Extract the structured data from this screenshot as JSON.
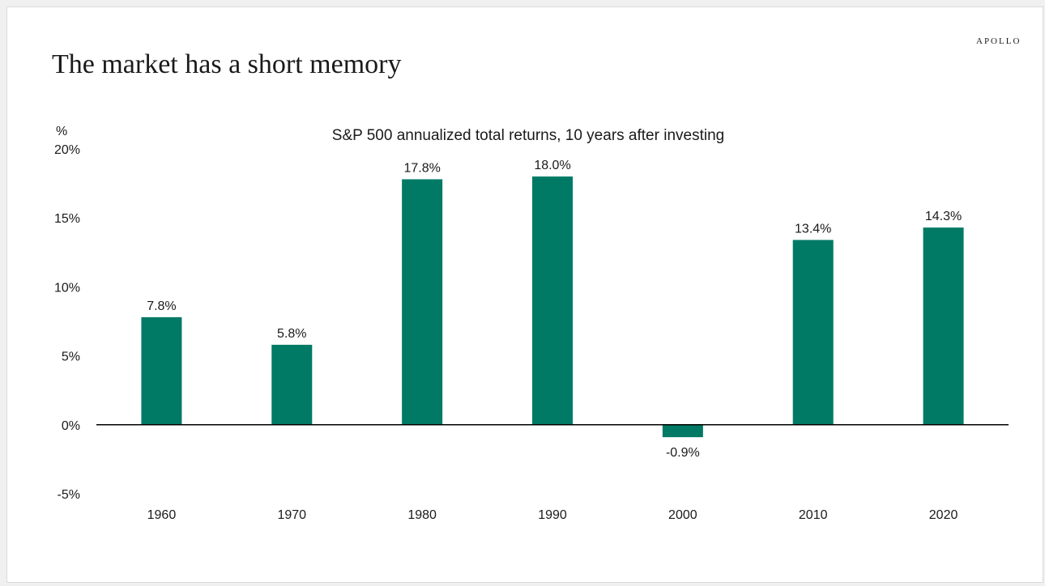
{
  "brand": "APOLLO",
  "title": "The market has a short memory",
  "colors": {
    "bar": "#007a65",
    "axis": "#000000",
    "text": "#1a1a1a"
  },
  "chart_data": {
    "type": "bar",
    "title": "S&P 500 annualized total returns, 10 years after investing",
    "ylabel": "%",
    "xlabel": "",
    "categories": [
      "1960",
      "1970",
      "1980",
      "1990",
      "2000",
      "2010",
      "2020"
    ],
    "values": [
      7.8,
      5.8,
      17.8,
      18.0,
      -0.9,
      13.4,
      14.3
    ],
    "value_labels": [
      "7.8%",
      "5.8%",
      "17.8%",
      "18.0%",
      "-0.9%",
      "13.4%",
      "14.3%"
    ],
    "yticks": [
      20,
      15,
      10,
      5,
      0,
      -5
    ],
    "ytick_labels": [
      "20%",
      "15%",
      "10%",
      "5%",
      "0%",
      "-5%"
    ],
    "ylim": [
      -5,
      20
    ],
    "grid": false,
    "legend": "none"
  }
}
